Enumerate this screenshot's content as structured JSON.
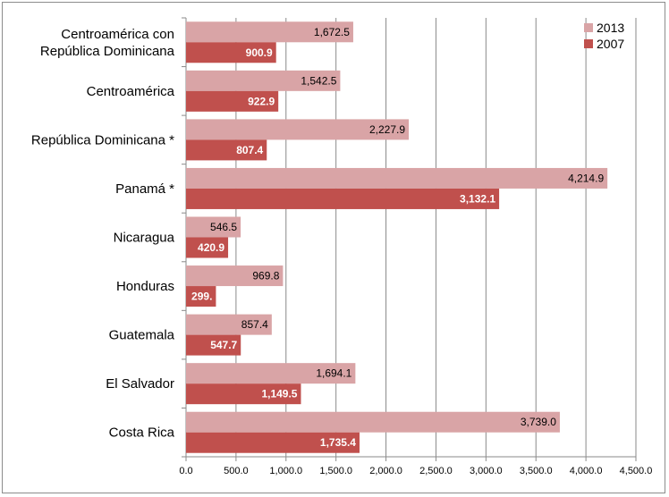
{
  "chart_data": {
    "type": "bar",
    "orientation": "horizontal",
    "title": "",
    "xlabel": "",
    "ylabel": "",
    "xlim": [
      0,
      4500
    ],
    "ticks": [
      0,
      500,
      1000,
      1500,
      2000,
      2500,
      3000,
      3500,
      4000,
      4500
    ],
    "tick_labels": [
      "0.0",
      "500.0",
      "1,000.0",
      "1,500.0",
      "2,000.0",
      "2,500.0",
      "3,000.0",
      "3,500.0",
      "4,000.0",
      "4,500.0"
    ],
    "grid": "vertical",
    "legend_position": "top-right",
    "categories": [
      [
        "Centroamérica con",
        "República Dominicana"
      ],
      [
        "Centroamérica"
      ],
      [
        "República Dominicana *"
      ],
      [
        "Panamá *"
      ],
      [
        "Nicaragua"
      ],
      [
        "Honduras"
      ],
      [
        "Guatemala"
      ],
      [
        "El Salvador"
      ],
      [
        "Costa Rica"
      ]
    ],
    "series": [
      {
        "name": "2013",
        "color": "#d9a4a6",
        "values": [
          1672.5,
          1542.5,
          2227.9,
          4214.9,
          546.5,
          969.8,
          857.4,
          1694.1,
          3739.0
        ],
        "labels": [
          "1,672.5",
          "1,542.5",
          "2,227.9",
          "4,214.9",
          "546.5",
          "969.8",
          "857.4",
          "1,694.1",
          "3,739.0"
        ]
      },
      {
        "name": "2007",
        "color": "#c0504d",
        "values": [
          900.9,
          922.9,
          807.4,
          3132.1,
          420.9,
          299.0,
          547.7,
          1149.5,
          1735.4
        ],
        "labels": [
          "900.9",
          "922.9",
          "807.4",
          "3,132.1",
          "420.9",
          "299.",
          "547.7",
          "1,149.5",
          "1,735.4"
        ]
      }
    ]
  }
}
